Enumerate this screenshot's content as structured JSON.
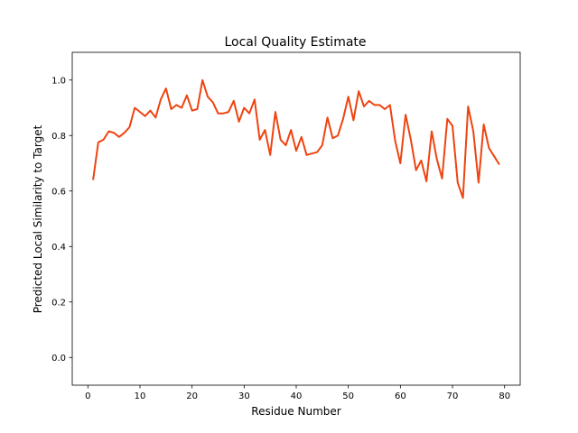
{
  "chart_data": {
    "type": "line",
    "title": "Local Quality Estimate",
    "xlabel": "Residue Number",
    "ylabel": "Predicted Local Similarity to Target",
    "xlim": [
      -3,
      83
    ],
    "ylim": [
      -0.1,
      1.1
    ],
    "xticks": [
      0,
      10,
      20,
      30,
      40,
      50,
      60,
      70,
      80
    ],
    "yticks": [
      0.0,
      0.2,
      0.4,
      0.6,
      0.8,
      1.0
    ],
    "xtick_labels": [
      "0",
      "10",
      "20",
      "30",
      "40",
      "50",
      "60",
      "70",
      "80"
    ],
    "ytick_labels": [
      "0.0",
      "0.2",
      "0.4",
      "0.6",
      "0.8",
      "1.0"
    ],
    "grid": false,
    "series": [
      {
        "color": "#ee4411",
        "x": [
          1,
          2,
          3,
          4,
          5,
          6,
          7,
          8,
          9,
          10,
          11,
          12,
          13,
          14,
          15,
          16,
          17,
          18,
          19,
          20,
          21,
          22,
          23,
          24,
          25,
          26,
          27,
          28,
          29,
          30,
          31,
          32,
          33,
          34,
          35,
          36,
          37,
          38,
          39,
          40,
          41,
          42,
          43,
          44,
          45,
          46,
          47,
          48,
          49,
          50,
          51,
          52,
          53,
          54,
          55,
          56,
          57,
          58,
          59,
          60,
          61,
          62,
          63,
          64,
          65,
          66,
          67,
          68,
          69,
          70,
          71,
          72,
          73,
          74,
          75,
          76,
          77,
          78,
          79
        ],
        "y": [
          0.64,
          0.775,
          0.785,
          0.815,
          0.81,
          0.795,
          0.81,
          0.83,
          0.9,
          0.885,
          0.87,
          0.89,
          0.865,
          0.93,
          0.97,
          0.895,
          0.91,
          0.9,
          0.945,
          0.89,
          0.895,
          1.0,
          0.94,
          0.92,
          0.88,
          0.88,
          0.885,
          0.925,
          0.85,
          0.9,
          0.88,
          0.93,
          0.785,
          0.82,
          0.73,
          0.885,
          0.785,
          0.765,
          0.82,
          0.745,
          0.795,
          0.73,
          0.735,
          0.74,
          0.765,
          0.865,
          0.79,
          0.8,
          0.86,
          0.94,
          0.855,
          0.96,
          0.905,
          0.925,
          0.91,
          0.91,
          0.895,
          0.91,
          0.78,
          0.7,
          0.875,
          0.785,
          0.675,
          0.71,
          0.635,
          0.815,
          0.715,
          0.645,
          0.86,
          0.835,
          0.63,
          0.575,
          0.905,
          0.815,
          0.63,
          0.84,
          0.755,
          0.725,
          0.695
        ]
      }
    ]
  }
}
